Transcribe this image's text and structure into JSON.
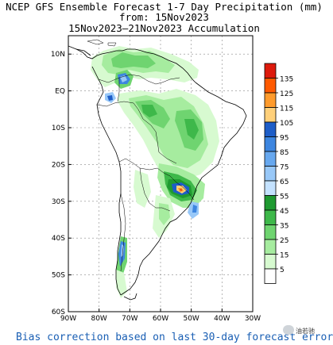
{
  "title": {
    "line1": "NCEP GFS Ensemble Forecast 1-7 Day Precipitation (mm)",
    "line2": "from: 15Nov2023",
    "line3": "15Nov2023—21Nov2023 Accumulation"
  },
  "map": {
    "region": "South America",
    "lat_ticks": [
      "10N",
      "EQ",
      "10S",
      "20S",
      "30S",
      "40S",
      "50S",
      "60S"
    ],
    "lon_ticks": [
      "90W",
      "80W",
      "70W",
      "60W",
      "50W",
      "40W",
      "30W"
    ],
    "lat_range": [
      -60,
      15
    ],
    "lon_range": [
      -90,
      -30
    ]
  },
  "legend": {
    "values": [
      "135",
      "125",
      "115",
      "105",
      "95",
      "85",
      "75",
      "65",
      "55",
      "45",
      "35",
      "25",
      "15",
      "5"
    ],
    "colors": [
      "#dd1a0c",
      "#ff5a00",
      "#ff9b2c",
      "#ffd07a",
      "#1e5ec8",
      "#3d86e0",
      "#67a8ef",
      "#98c8f8",
      "#c4e2ff",
      "#1f9a31",
      "#3eb84a",
      "#6fd470",
      "#a6ec9f",
      "#d7fad0",
      "#ffffff"
    ]
  },
  "footer": "Bias correction based on last 30-day forecast error",
  "watermark": "油若驰"
}
